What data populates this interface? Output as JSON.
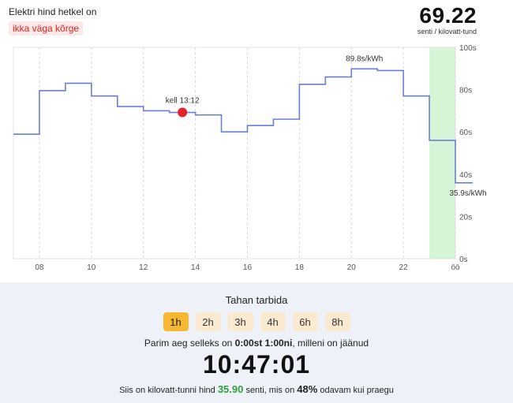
{
  "header": {
    "title": "Elektri hind hetkel on",
    "badge": "ikka väga kõrge",
    "price": "69.22",
    "unit": "senti / kilovatt-tund"
  },
  "chart_data": {
    "type": "line",
    "step": true,
    "x_ticks": [
      "08",
      "10",
      "12",
      "14",
      "16",
      "18",
      "20",
      "22",
      "öö"
    ],
    "y_ticks": [
      "0s",
      "20s",
      "40s",
      "60s",
      "80s",
      "100s"
    ],
    "ylim": [
      0,
      100
    ],
    "xlim": [
      7,
      24
    ],
    "hours": [
      7,
      8,
      9,
      10,
      11,
      12,
      13,
      14,
      15,
      16,
      17,
      18,
      19,
      20,
      21,
      22,
      23
    ],
    "values": [
      58.9,
      79.5,
      83.0,
      77.0,
      72.0,
      70.0,
      69.2,
      68.0,
      60.0,
      63.0,
      66.0,
      82.5,
      86.0,
      89.8,
      89.0,
      77.0,
      56.0
    ],
    "last_value": 35.9,
    "highlight_range": [
      23,
      24
    ],
    "highlight_color": "#d6f5d6",
    "line_color": "#6b7fd7",
    "current": {
      "hour": 13.5,
      "value": 69.22,
      "label": "kell 13:12",
      "color": "#e8202a"
    },
    "annotations": {
      "max_label": "89.8s/kWh",
      "min_label": "35.9s/kWh"
    },
    "grid": true
  },
  "bottom": {
    "title": "Tahan tarbida",
    "durations": [
      "1h",
      "2h",
      "3h",
      "4h",
      "6h",
      "8h"
    ],
    "active_index": 0,
    "best_prefix": "Parim aeg selleks on",
    "best_time": "0:00st 1:00ni",
    "best_suffix": ", milleni on jäänud",
    "countdown": "10:47:01",
    "summary_prefix": "Siis on kilovatt-tunni hind",
    "summary_price": "35.90",
    "summary_mid": "senti, mis on",
    "summary_percent": "48%",
    "summary_suffix": "odavam kui praegu"
  }
}
